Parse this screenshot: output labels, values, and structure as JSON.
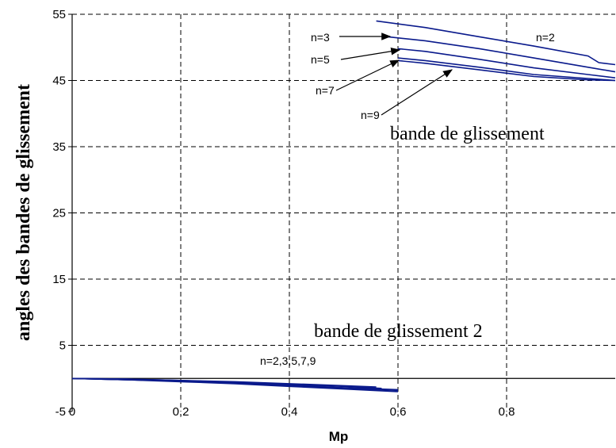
{
  "chart_data": {
    "type": "line",
    "xlabel": "Mp",
    "ylabel": "angles des bandes de glissement",
    "xlim": [
      0,
      1
    ],
    "ylim": [
      -5,
      55
    ],
    "x_ticks": [
      "0",
      "0,2",
      "0,4",
      "0,6",
      "0,8"
    ],
    "y_ticks": [
      "-5",
      "5",
      "15",
      "25",
      "35",
      "45",
      "55"
    ],
    "grid": true,
    "line_color": "#0a1a8c",
    "series": [
      {
        "name": "n=2",
        "x": [
          0.56,
          0.65,
          0.75,
          0.85,
          0.95,
          0.97,
          1.0
        ],
        "y": [
          54.0,
          53.0,
          51.6,
          50.2,
          48.7,
          47.7,
          47.4
        ]
      },
      {
        "name": "n=3",
        "x": [
          0.57,
          0.65,
          0.75,
          0.85,
          0.95,
          1.0
        ],
        "y": [
          51.7,
          51.0,
          49.8,
          48.4,
          47.0,
          46.3
        ]
      },
      {
        "name": "n=5",
        "x": [
          0.6,
          0.65,
          0.75,
          0.85,
          0.95,
          1.0
        ],
        "y": [
          49.8,
          49.4,
          48.2,
          46.9,
          45.9,
          45.4
        ]
      },
      {
        "name": "n=7",
        "x": [
          0.6,
          0.65,
          0.75,
          0.85,
          0.95,
          1.0
        ],
        "y": [
          48.4,
          48.0,
          47.0,
          45.9,
          45.3,
          45.0
        ]
      },
      {
        "name": "n=9",
        "x": [
          0.6,
          0.65,
          0.75,
          0.85,
          0.95,
          1.0
        ],
        "y": [
          48.0,
          47.6,
          46.6,
          45.6,
          45.1,
          45.0
        ]
      },
      {
        "name": "n=2 (bande 2)",
        "x": [
          0,
          0.1,
          0.2,
          0.3,
          0.4,
          0.5,
          0.56
        ],
        "y": [
          0,
          -0.1,
          -0.3,
          -0.5,
          -0.8,
          -1.1,
          -1.3
        ]
      },
      {
        "name": "n=3 (bande 2)",
        "x": [
          0,
          0.1,
          0.2,
          0.3,
          0.4,
          0.5,
          0.57
        ],
        "y": [
          0,
          -0.1,
          -0.3,
          -0.6,
          -0.9,
          -1.2,
          -1.5
        ]
      },
      {
        "name": "n=5 (bande 2)",
        "x": [
          0,
          0.1,
          0.2,
          0.3,
          0.4,
          0.5,
          0.6
        ],
        "y": [
          0,
          -0.2,
          -0.4,
          -0.7,
          -1.0,
          -1.4,
          -1.7
        ]
      },
      {
        "name": "n=7 (bande 2)",
        "x": [
          0,
          0.1,
          0.2,
          0.3,
          0.4,
          0.5,
          0.6
        ],
        "y": [
          0,
          -0.2,
          -0.4,
          -0.7,
          -1.1,
          -1.5,
          -1.8
        ]
      },
      {
        "name": "n=9 (bande 2)",
        "x": [
          0,
          0.1,
          0.2,
          0.3,
          0.4,
          0.5,
          0.6
        ],
        "y": [
          0,
          -0.2,
          -0.5,
          -0.8,
          -1.2,
          -1.6,
          -2.0
        ]
      }
    ],
    "annotations": {
      "n2": "n=2",
      "n3": "n=3",
      "n5": "n=5",
      "n7": "n=7",
      "n9": "n=9",
      "band1": "bande de glissement",
      "band2": "bande de glissement 2",
      "nlist": "n=2,3,5,7,9"
    }
  }
}
